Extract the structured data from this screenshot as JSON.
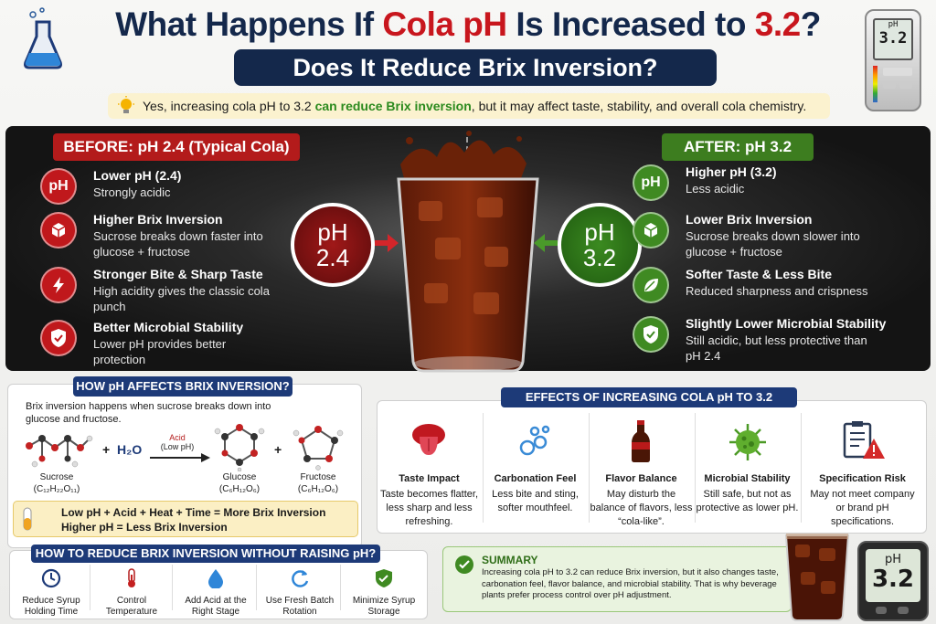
{
  "header": {
    "title_pre": "What Happens If ",
    "title_red1": "Cola pH",
    "title_mid": " Is Increased to ",
    "title_red2": "3.2",
    "title_post": "?",
    "subtitle": "Does It Reduce Brix Inversion?",
    "answer_pre": "Yes, increasing cola pH to 3.2 ",
    "answer_green": "can reduce Brix inversion",
    "answer_post": ", but it may affect taste, stability, and overall cola chemistry."
  },
  "meter_top": {
    "label": "pH",
    "value": "3.2"
  },
  "before": {
    "header": "BEFORE: pH 2.4 (Typical Cola)",
    "badge_top": "pH",
    "badge_bottom": "2.4",
    "items": [
      {
        "icon": "ph-icon",
        "icon_text": "pH",
        "title": "Lower pH (2.4)",
        "desc": "Strongly acidic"
      },
      {
        "icon": "cube-icon",
        "title": "Higher Brix Inversion",
        "desc": "Sucrose breaks down faster into glucose + fructose"
      },
      {
        "icon": "lightning-icon",
        "title": "Stronger Bite & Sharp Taste",
        "desc": "High acidity gives the classic cola punch"
      },
      {
        "icon": "shield-icon",
        "title": "Better Microbial Stability",
        "desc": "Lower pH provides better protection"
      }
    ]
  },
  "after": {
    "header": "AFTER: pH 3.2",
    "badge_top": "pH",
    "badge_bottom": "3.2",
    "items": [
      {
        "icon": "ph-icon",
        "icon_text": "pH",
        "title": "Higher pH (3.2)",
        "desc": "Less acidic"
      },
      {
        "icon": "cube-icon",
        "title": "Lower Brix Inversion",
        "desc": "Sucrose breaks down slower into glucose + fructose"
      },
      {
        "icon": "leaf-icon",
        "title": "Softer Taste & Less Bite",
        "desc": "Reduced sharpness and crispness"
      },
      {
        "icon": "shield-icon",
        "title": "Slightly Lower Microbial Stability",
        "desc": "Still acidic, but less protective than pH 2.4"
      }
    ]
  },
  "how": {
    "header": "HOW pH AFFECTS BRIX INVERSION?",
    "intro": "Brix inversion happens when sucrose breaks down into glucose and fructose.",
    "plus1": "+",
    "water": "H₂O",
    "arrow_top": "Acid",
    "arrow_bottom": "(Low pH)",
    "plus2": "+",
    "molecules": [
      {
        "name": "Sucrose",
        "formula": "(C₁₂H₂₂O₁₁)"
      },
      {
        "name": "Glucose",
        "formula": "(C₆H₁₂O₆)"
      },
      {
        "name": "Fructose",
        "formula": "(C₆H₁₂O₆)"
      }
    ],
    "rule1": "Low pH + Acid + Heat + Time = More Brix Inversion",
    "rule2": "Higher pH = Less Brix Inversion"
  },
  "effects": {
    "header": "EFFECTS OF INCREASING COLA pH TO 3.2",
    "items": [
      {
        "icon": "tongue-icon",
        "title": "Taste Impact",
        "desc": "Taste becomes flatter, less sharp and less refreshing."
      },
      {
        "icon": "bubbles-icon",
        "title": "Carbonation Feel",
        "desc": "Less bite and sting, softer mouthfeel."
      },
      {
        "icon": "bottle-icon",
        "title": "Flavor Balance",
        "desc": "May disturb the balance of flavors, less “cola-like”."
      },
      {
        "icon": "microbe-icon",
        "title": "Microbial Stability",
        "desc": "Still safe, but not as protective as lower pH."
      },
      {
        "icon": "clipboard-warning-icon",
        "title": "Specification Risk",
        "desc": "May not meet company or brand pH specifications."
      }
    ]
  },
  "reduce": {
    "header": "HOW TO REDUCE BRIX INVERSION WITHOUT RAISING pH?",
    "tips": [
      {
        "icon": "clock-icon",
        "label": "Reduce Syrup Holding Time"
      },
      {
        "icon": "thermometer-icon",
        "label": "Control Temperature"
      },
      {
        "icon": "droplet-icon",
        "label": "Add Acid at the Right Stage"
      },
      {
        "icon": "refresh-icon",
        "label": "Use Fresh Batch Rotation"
      },
      {
        "icon": "shield-check-icon",
        "label": "Minimize Syrup Storage"
      }
    ]
  },
  "summary": {
    "title": "SUMMARY",
    "text": "Increasing cola pH to 3.2 can reduce Brix inversion, but it also changes taste, carbonation feel, flavor balance, and microbial stability. That is why beverage plants prefer process control over pH adjustment."
  },
  "meter_bottom": {
    "label": "pH",
    "value": "3.2"
  },
  "colors": {
    "navy": "#14284b",
    "red": "#c8161d",
    "green": "#3f8a22",
    "cola": "#3b1206"
  }
}
